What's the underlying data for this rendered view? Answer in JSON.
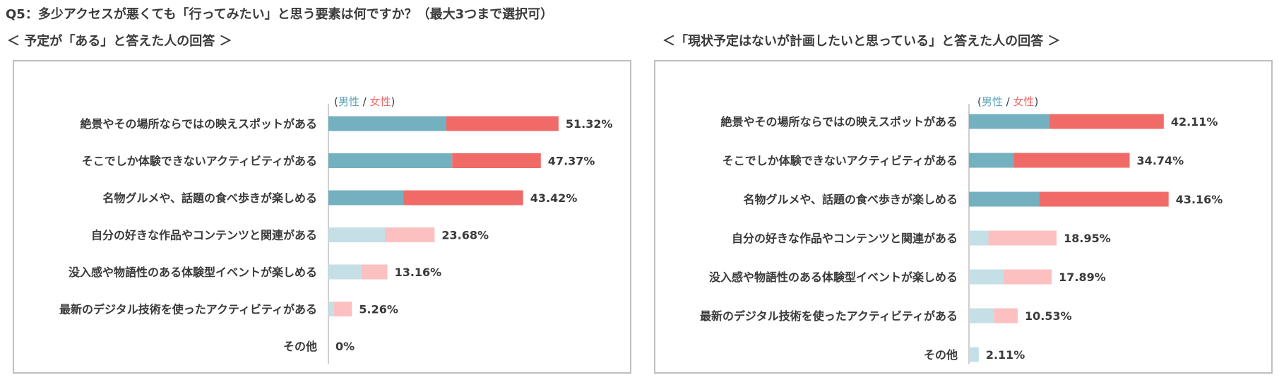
{
  "question_title": "Q5：多少アクセスが悪くても「行ってみたい」と思う要素は何ですか？（最大3つまで選択可）",
  "legend": {
    "open": "(",
    "male": "男性",
    "sep": " / ",
    "female": "女性",
    "close": ")"
  },
  "colors": {
    "male_strong": "#74b1c0",
    "female_strong": "#f06b68",
    "male_light": "#c5dfe6",
    "female_light": "#fcc0c0",
    "axis": "#bfbfbf",
    "border": "#bfbfbf"
  },
  "chart_data": [
    {
      "type": "bar",
      "orientation": "horizontal",
      "stacked": true,
      "title": "＜ 予定が「ある」と答えた人の回答 ＞",
      "categories": [
        "絶景やその場所ならではの映えスポットがある",
        "そこでしか体験できないアクティビティがある",
        "名物グルメや、話題の食べ歩きが楽しめる",
        "自分の好きな作品やコンテンツと関連がある",
        "没入感や物語性のある体験型イベントが楽しめる",
        "最新のデジタル技術を使ったアクティビティがある",
        "その他"
      ],
      "totals": [
        "51.32%",
        "47.37%",
        "43.42%",
        "23.68%",
        "13.16%",
        "5.26%",
        "0%"
      ],
      "total_values": [
        51.32,
        47.37,
        43.42,
        23.68,
        13.16,
        5.26,
        0
      ],
      "series": [
        {
          "name": "男性",
          "values": [
            26.3,
            27.6,
            16.7,
            12.6,
            7.3,
            1.2,
            0
          ]
        },
        {
          "name": "女性",
          "values": [
            25.02,
            19.77,
            26.72,
            11.08,
            5.86,
            4.06,
            0
          ]
        }
      ],
      "highlighted": [
        true,
        true,
        true,
        false,
        false,
        false,
        false
      ],
      "xlim": [
        0,
        100
      ]
    },
    {
      "type": "bar",
      "orientation": "horizontal",
      "stacked": true,
      "title": "＜「現状予定はないが計画したいと思っている」と答えた人の回答 ＞",
      "categories": [
        "絶景やその場所ならではの映えスポットがある",
        "そこでしか体験できないアクティビティがある",
        "名物グルメや、話題の食べ歩きが楽しめる",
        "自分の好きな作品やコンテンツと関連がある",
        "没入感や物語性のある体験型イベントが楽しめる",
        "最新のデジタル技術を使ったアクティビティがある",
        "その他"
      ],
      "totals": [
        "42.11%",
        "34.74%",
        "43.16%",
        "18.95%",
        "17.89%",
        "10.53%",
        "2.11%"
      ],
      "total_values": [
        42.11,
        34.74,
        43.16,
        18.95,
        17.89,
        10.53,
        2.11
      ],
      "series": [
        {
          "name": "男性",
          "values": [
            17.3,
            9.6,
            15.2,
            4.2,
            7.4,
            5.4,
            2.11
          ]
        },
        {
          "name": "女性",
          "values": [
            24.81,
            25.14,
            27.96,
            14.75,
            10.49,
            5.13,
            0
          ]
        }
      ],
      "highlighted": [
        true,
        true,
        true,
        false,
        false,
        false,
        false
      ],
      "xlim": [
        0,
        100
      ]
    }
  ]
}
